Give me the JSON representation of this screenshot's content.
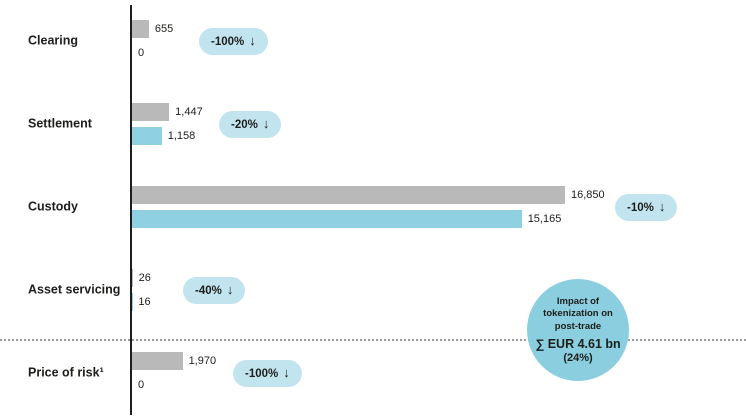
{
  "icons": {
    "down_arrow": "↓"
  },
  "colors": {
    "bar_baseline": "#b9b9b9",
    "bar_tokenized": "#8fd1e2",
    "badge_bg": "#c2e4ef",
    "circle_bg": "#8bcee0",
    "axis": "#1d1d1b"
  },
  "chart_data": {
    "type": "bar",
    "orientation": "horizontal",
    "xmax": 16850,
    "grid": false,
    "series_colors": {
      "baseline": "#b9b9b9",
      "tokenized": "#8fd1e2"
    },
    "categories": [
      "Clearing",
      "Settlement",
      "Custody",
      "Asset servicing",
      "Price of risk¹"
    ],
    "rows": [
      {
        "label": "Clearing",
        "values": [
          655,
          0
        ],
        "value_labels": [
          "655",
          "0"
        ],
        "change": "-100%"
      },
      {
        "label": "Settlement",
        "values": [
          1447,
          1158
        ],
        "value_labels": [
          "1,447",
          "1,158"
        ],
        "change": "-20%"
      },
      {
        "label": "Custody",
        "values": [
          16850,
          15165
        ],
        "value_labels": [
          "16,850",
          "15,165"
        ],
        "change": "-10%"
      },
      {
        "label": "Asset servicing",
        "values": [
          26,
          16
        ],
        "value_labels": [
          "26",
          "16"
        ],
        "change": "-40%"
      },
      {
        "label": "Price of risk¹",
        "values": [
          1970,
          0
        ],
        "value_labels": [
          "1,970",
          "0"
        ],
        "change": "-100%"
      }
    ],
    "annotation": {
      "title_line1": "Impact of",
      "title_line2": "tokenization on",
      "title_line3": "post-trade",
      "sum": "∑ EUR 4.61 bn",
      "percent": "(24%)"
    }
  }
}
